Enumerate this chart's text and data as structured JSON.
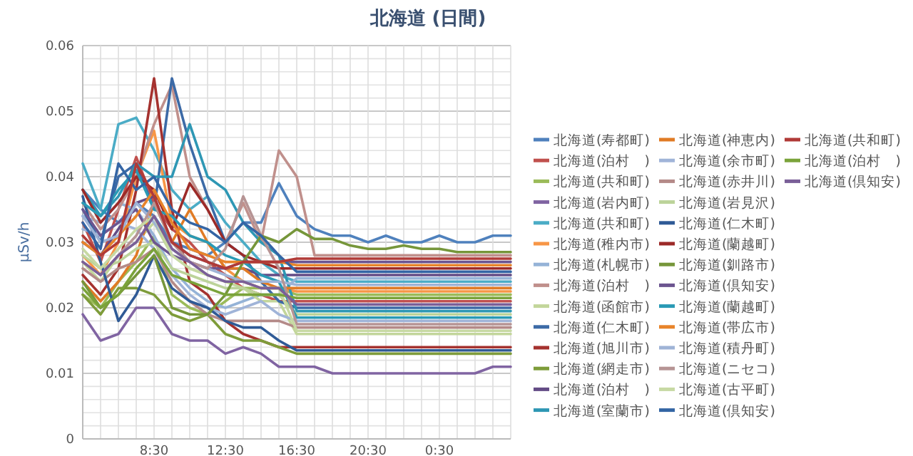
{
  "chart_data": {
    "type": "line",
    "title": "北海道 (日間)",
    "ylabel": "μSv/h",
    "legend": "right",
    "grid": true,
    "ylim": [
      0,
      0.06
    ],
    "yticks": [
      0,
      0.01,
      0.02,
      0.03,
      0.04,
      0.05,
      0.06
    ],
    "categories": [
      null,
      null,
      null,
      null,
      "8:30",
      null,
      null,
      null,
      "12:30",
      null,
      null,
      null,
      "16:30",
      null,
      null,
      null,
      "20:30",
      null,
      null,
      null,
      "0:30",
      null,
      null,
      null,
      null
    ],
    "series": [
      {
        "name": "北海道(寿都町)",
        "color": "#4f81bd",
        "values": [
          0.038,
          0.035,
          0.033,
          0.036,
          0.034,
          0.03,
          0.029,
          0.028,
          0.03,
          0.033,
          0.033,
          0.039,
          0.034,
          0.032,
          0.031,
          0.031,
          0.03,
          0.031,
          0.03,
          0.03,
          0.031,
          0.03,
          0.03,
          0.031,
          0.031
        ]
      },
      {
        "name": "北海道(泊村　)",
        "color": "#c0504d",
        "values": [
          0.033,
          0.027,
          0.035,
          0.043,
          0.036,
          0.032,
          0.03,
          0.027,
          0.025,
          0.023,
          0.022,
          0.021,
          0.021,
          0.021,
          0.021,
          0.021,
          0.021,
          0.021,
          0.021,
          0.021,
          0.021,
          0.021,
          0.021,
          0.021,
          0.021
        ]
      },
      {
        "name": "北海道(共和町)",
        "color": "#9bbb59",
        "values": [
          0.022,
          0.02,
          0.024,
          0.027,
          0.031,
          0.022,
          0.02,
          0.019,
          0.021,
          0.023,
          0.023,
          0.023,
          0.022,
          0.022,
          0.022,
          0.022,
          0.022,
          0.022,
          0.022,
          0.022,
          0.022,
          0.022,
          0.022,
          0.022,
          0.022
        ]
      },
      {
        "name": "北海道(岩内町)",
        "color": "#8064a2",
        "values": [
          0.019,
          0.015,
          0.016,
          0.02,
          0.02,
          0.016,
          0.015,
          0.015,
          0.013,
          0.014,
          0.013,
          0.011,
          0.011,
          0.011,
          0.01,
          0.01,
          0.01,
          0.01,
          0.01,
          0.01,
          0.01,
          0.01,
          0.01,
          0.011,
          0.011
        ]
      },
      {
        "name": "北海道(共和町)",
        "color": "#4bacc6",
        "values": [
          0.042,
          0.035,
          0.048,
          0.049,
          0.044,
          0.038,
          0.035,
          0.037,
          0.033,
          0.03,
          0.027,
          0.025,
          0.024,
          0.024,
          0.024,
          0.024,
          0.024,
          0.024,
          0.024,
          0.024,
          0.024,
          0.024,
          0.024,
          0.024,
          0.024
        ]
      },
      {
        "name": "北海道(稚内市)",
        "color": "#f79646",
        "values": [
          0.028,
          0.025,
          0.03,
          0.04,
          0.047,
          0.033,
          0.031,
          0.03,
          0.026,
          0.024,
          0.023,
          0.023,
          0.0225,
          0.0225,
          0.0225,
          0.0225,
          0.0225,
          0.0225,
          0.0225,
          0.0225,
          0.0225,
          0.0225,
          0.0225,
          0.0225,
          0.0225
        ]
      },
      {
        "name": "北海道(札幌市)",
        "color": "#95b3d7",
        "values": [
          0.034,
          0.033,
          0.036,
          0.035,
          0.031,
          0.026,
          0.023,
          0.021,
          0.02,
          0.021,
          0.022,
          0.022,
          0.0245,
          0.0245,
          0.0245,
          0.0245,
          0.0245,
          0.0245,
          0.0245,
          0.0245,
          0.0245,
          0.0245,
          0.0245,
          0.0245,
          0.0245
        ]
      },
      {
        "name": "北海道(泊村　)",
        "color": "#c0908c",
        "values": [
          0.036,
          0.032,
          0.035,
          0.04,
          0.048,
          0.054,
          0.04,
          0.035,
          0.03,
          0.036,
          0.03,
          0.044,
          0.04,
          0.028,
          0.028,
          0.028,
          0.028,
          0.028,
          0.028,
          0.028,
          0.028,
          0.028,
          0.028,
          0.028,
          0.028
        ]
      },
      {
        "name": "北海道(函館市)",
        "color": "#c3d69b",
        "values": [
          0.027,
          0.024,
          0.028,
          0.03,
          0.033,
          0.028,
          0.026,
          0.025,
          0.024,
          0.023,
          0.021,
          0.021,
          0.016,
          0.016,
          0.016,
          0.016,
          0.016,
          0.016,
          0.016,
          0.016,
          0.016,
          0.016,
          0.016,
          0.016,
          0.016
        ]
      },
      {
        "name": "北海道(仁木町)",
        "color": "#3c6aa6",
        "values": [
          0.035,
          0.03,
          0.04,
          0.042,
          0.035,
          0.055,
          0.045,
          0.037,
          0.03,
          0.028,
          0.024,
          0.021,
          0.02,
          0.02,
          0.02,
          0.02,
          0.02,
          0.02,
          0.02,
          0.02,
          0.02,
          0.02,
          0.02,
          0.02,
          0.02
        ]
      },
      {
        "name": "北海道(旭川市)",
        "color": "#a5322f",
        "values": [
          0.025,
          0.022,
          0.026,
          0.038,
          0.055,
          0.035,
          0.024,
          0.022,
          0.018,
          0.016,
          0.015,
          0.014,
          0.014,
          0.014,
          0.014,
          0.014,
          0.014,
          0.014,
          0.014,
          0.014,
          0.014,
          0.014,
          0.014,
          0.014,
          0.014
        ]
      },
      {
        "name": "北海道(網走市)",
        "color": "#7e9c3a",
        "values": [
          0.022,
          0.019,
          0.023,
          0.023,
          0.022,
          0.019,
          0.018,
          0.019,
          0.016,
          0.015,
          0.015,
          0.014,
          0.013,
          0.013,
          0.013,
          0.013,
          0.013,
          0.013,
          0.013,
          0.013,
          0.013,
          0.013,
          0.013,
          0.013,
          0.013
        ]
      },
      {
        "name": "北海道(泊村　)",
        "color": "#644c86",
        "values": [
          0.03,
          0.028,
          0.032,
          0.036,
          0.037,
          0.03,
          0.028,
          0.027,
          0.026,
          0.026,
          0.025,
          0.025,
          0.025,
          0.025,
          0.025,
          0.025,
          0.025,
          0.025,
          0.025,
          0.025,
          0.025,
          0.025,
          0.025,
          0.025,
          0.025
        ]
      },
      {
        "name": "北海道(室蘭市)",
        "color": "#2e97b4",
        "values": [
          0.038,
          0.034,
          0.037,
          0.042,
          0.04,
          0.04,
          0.048,
          0.04,
          0.038,
          0.033,
          0.03,
          0.028,
          0.0195,
          0.0195,
          0.0195,
          0.0195,
          0.0195,
          0.0195,
          0.0195,
          0.0195,
          0.0195,
          0.0195,
          0.0195,
          0.0195,
          0.0195
        ]
      },
      {
        "name": "北海道(神恵内)",
        "color": "#e07b25",
        "values": [
          0.024,
          0.021,
          0.024,
          0.028,
          0.036,
          0.03,
          0.035,
          0.03,
          0.026,
          0.026,
          0.024,
          0.023,
          0.023,
          0.023,
          0.023,
          0.023,
          0.023,
          0.023,
          0.023,
          0.023,
          0.023,
          0.023,
          0.023,
          0.023,
          0.023
        ]
      },
      {
        "name": "北海道(余市町)",
        "color": "#a0b4d8",
        "values": [
          0.032,
          0.031,
          0.033,
          0.032,
          0.029,
          0.025,
          0.022,
          0.02,
          0.019,
          0.02,
          0.021,
          0.019,
          0.018,
          0.018,
          0.018,
          0.018,
          0.018,
          0.018,
          0.018,
          0.018,
          0.018,
          0.018,
          0.018,
          0.018,
          0.018
        ]
      },
      {
        "name": "北海道(赤井川)",
        "color": "#b48a88",
        "values": [
          0.026,
          0.024,
          0.026,
          0.027,
          0.029,
          0.024,
          0.021,
          0.019,
          0.018,
          0.018,
          0.018,
          0.018,
          0.017,
          0.017,
          0.017,
          0.017,
          0.017,
          0.017,
          0.017,
          0.017,
          0.017,
          0.017,
          0.017,
          0.017,
          0.017
        ]
      },
      {
        "name": "北海道(岩見沢)",
        "color": "#bcd39a",
        "values": [
          0.028,
          0.026,
          0.027,
          0.029,
          0.03,
          0.026,
          0.025,
          0.024,
          0.023,
          0.023,
          0.022,
          0.022,
          0.019,
          0.019,
          0.019,
          0.019,
          0.019,
          0.019,
          0.019,
          0.019,
          0.019,
          0.019,
          0.019,
          0.019,
          0.019
        ]
      },
      {
        "name": "北海道(仁木町)",
        "color": "#2f5a96",
        "values": [
          0.037,
          0.027,
          0.018,
          0.022,
          0.028,
          0.023,
          0.021,
          0.02,
          0.018,
          0.017,
          0.017,
          0.015,
          0.0135,
          0.0135,
          0.0135,
          0.0135,
          0.0135,
          0.0135,
          0.0135,
          0.0135,
          0.0135,
          0.0135,
          0.0135,
          0.0135,
          0.0135
        ]
      },
      {
        "name": "北海道(蘭越町)",
        "color": "#9c2a28",
        "values": [
          0.038,
          0.033,
          0.036,
          0.04,
          0.038,
          0.032,
          0.039,
          0.035,
          0.03,
          0.028,
          0.027,
          0.026,
          0.026,
          0.026,
          0.026,
          0.026,
          0.026,
          0.026,
          0.026,
          0.026,
          0.026,
          0.026,
          0.026,
          0.026,
          0.026
        ]
      },
      {
        "name": "北海道(釧路市)",
        "color": "#76963a",
        "values": [
          0.024,
          0.02,
          0.022,
          0.025,
          0.028,
          0.02,
          0.019,
          0.019,
          0.022,
          0.027,
          0.031,
          0.03,
          0.032,
          0.0305,
          0.0305,
          0.0295,
          0.029,
          0.029,
          0.0295,
          0.029,
          0.029,
          0.0285,
          0.0285,
          0.0285,
          0.0285
        ]
      },
      {
        "name": "北海道(倶知安)",
        "color": "#6c5590",
        "values": [
          0.035,
          0.031,
          0.033,
          0.035,
          0.03,
          0.028,
          0.027,
          0.026,
          0.026,
          0.027,
          0.027,
          0.027,
          0.027,
          0.027,
          0.027,
          0.027,
          0.027,
          0.027,
          0.027,
          0.027,
          0.027,
          0.027,
          0.027,
          0.027,
          0.027
        ]
      },
      {
        "name": "北海道(蘭越町)",
        "color": "#2a9ab5",
        "values": [
          0.036,
          0.034,
          0.038,
          0.041,
          0.035,
          0.034,
          0.031,
          0.03,
          0.028,
          0.027,
          0.025,
          0.024,
          0.0185,
          0.0185,
          0.0185,
          0.0185,
          0.0185,
          0.0185,
          0.0185,
          0.0185,
          0.0185,
          0.0185,
          0.0185,
          0.0185,
          0.0185
        ]
      },
      {
        "name": "北海道(帯広市)",
        "color": "#e8842a",
        "values": [
          0.03,
          0.028,
          0.031,
          0.034,
          0.038,
          0.033,
          0.029,
          0.028,
          0.027,
          0.027,
          0.027,
          0.027,
          0.0265,
          0.0265,
          0.0265,
          0.0265,
          0.0265,
          0.0265,
          0.0265,
          0.0265,
          0.0265,
          0.0265,
          0.0265,
          0.0265,
          0.0265
        ]
      },
      {
        "name": "北海道(積丹町)",
        "color": "#9fb3d6",
        "values": [
          0.034,
          0.03,
          0.031,
          0.036,
          0.033,
          0.029,
          0.027,
          0.026,
          0.025,
          0.024,
          0.024,
          0.024,
          0.0235,
          0.0235,
          0.0235,
          0.0235,
          0.0235,
          0.0235,
          0.0235,
          0.0235,
          0.0235,
          0.0235,
          0.0235,
          0.0235,
          0.0235
        ]
      },
      {
        "name": "北海道(ニセコ)",
        "color": "#b69494",
        "values": [
          0.027,
          0.025,
          0.028,
          0.031,
          0.036,
          0.03,
          0.027,
          0.026,
          0.029,
          0.037,
          0.031,
          0.026,
          0.0175,
          0.0175,
          0.0175,
          0.0175,
          0.0175,
          0.0175,
          0.0175,
          0.0175,
          0.0175,
          0.0175,
          0.0175,
          0.0175,
          0.0175
        ]
      },
      {
        "name": "北海道(古平町)",
        "color": "#c7d9a3",
        "values": [
          0.029,
          0.026,
          0.029,
          0.032,
          0.034,
          0.028,
          0.026,
          0.025,
          0.024,
          0.024,
          0.023,
          0.023,
          0.0165,
          0.0165,
          0.0165,
          0.0165,
          0.0165,
          0.0165,
          0.0165,
          0.0165,
          0.0165,
          0.0165,
          0.0165,
          0.0165,
          0.0165
        ]
      },
      {
        "name": "北海道(倶知安)",
        "color": "#3465a4",
        "values": [
          0.033,
          0.029,
          0.042,
          0.038,
          0.04,
          0.035,
          0.033,
          0.032,
          0.03,
          0.033,
          0.031,
          0.028,
          0.0255,
          0.0255,
          0.0255,
          0.0255,
          0.0255,
          0.0255,
          0.0255,
          0.0255,
          0.0255,
          0.0255,
          0.0255,
          0.0255,
          0.0255
        ]
      },
      {
        "name": "北海道(共和町)",
        "color": "#b03a37",
        "values": [
          0.031,
          0.028,
          0.03,
          0.042,
          0.037,
          0.03,
          0.028,
          0.027,
          0.026,
          0.027,
          0.027,
          0.027,
          0.0275,
          0.0275,
          0.0275,
          0.0275,
          0.0275,
          0.0275,
          0.0275,
          0.0275,
          0.0275,
          0.0275,
          0.0275,
          0.0275,
          0.0275
        ]
      },
      {
        "name": "北海道(泊村　)",
        "color": "#7aa33a",
        "values": [
          0.023,
          0.02,
          0.022,
          0.026,
          0.029,
          0.025,
          0.024,
          0.023,
          0.022,
          0.022,
          0.022,
          0.022,
          0.0215,
          0.0215,
          0.0215,
          0.0215,
          0.0215,
          0.0215,
          0.0215,
          0.0215,
          0.0215,
          0.0215,
          0.0215,
          0.0215,
          0.0215
        ]
      },
      {
        "name": "北海道(倶知安)",
        "color": "#7a5f98",
        "values": [
          0.027,
          0.025,
          0.028,
          0.03,
          0.034,
          0.029,
          0.027,
          0.025,
          0.024,
          0.024,
          0.023,
          0.023,
          0.0205,
          0.0205,
          0.0205,
          0.0205,
          0.0205,
          0.0205,
          0.0205,
          0.0205,
          0.0205,
          0.0205,
          0.0205,
          0.0205,
          0.0205
        ]
      }
    ]
  }
}
